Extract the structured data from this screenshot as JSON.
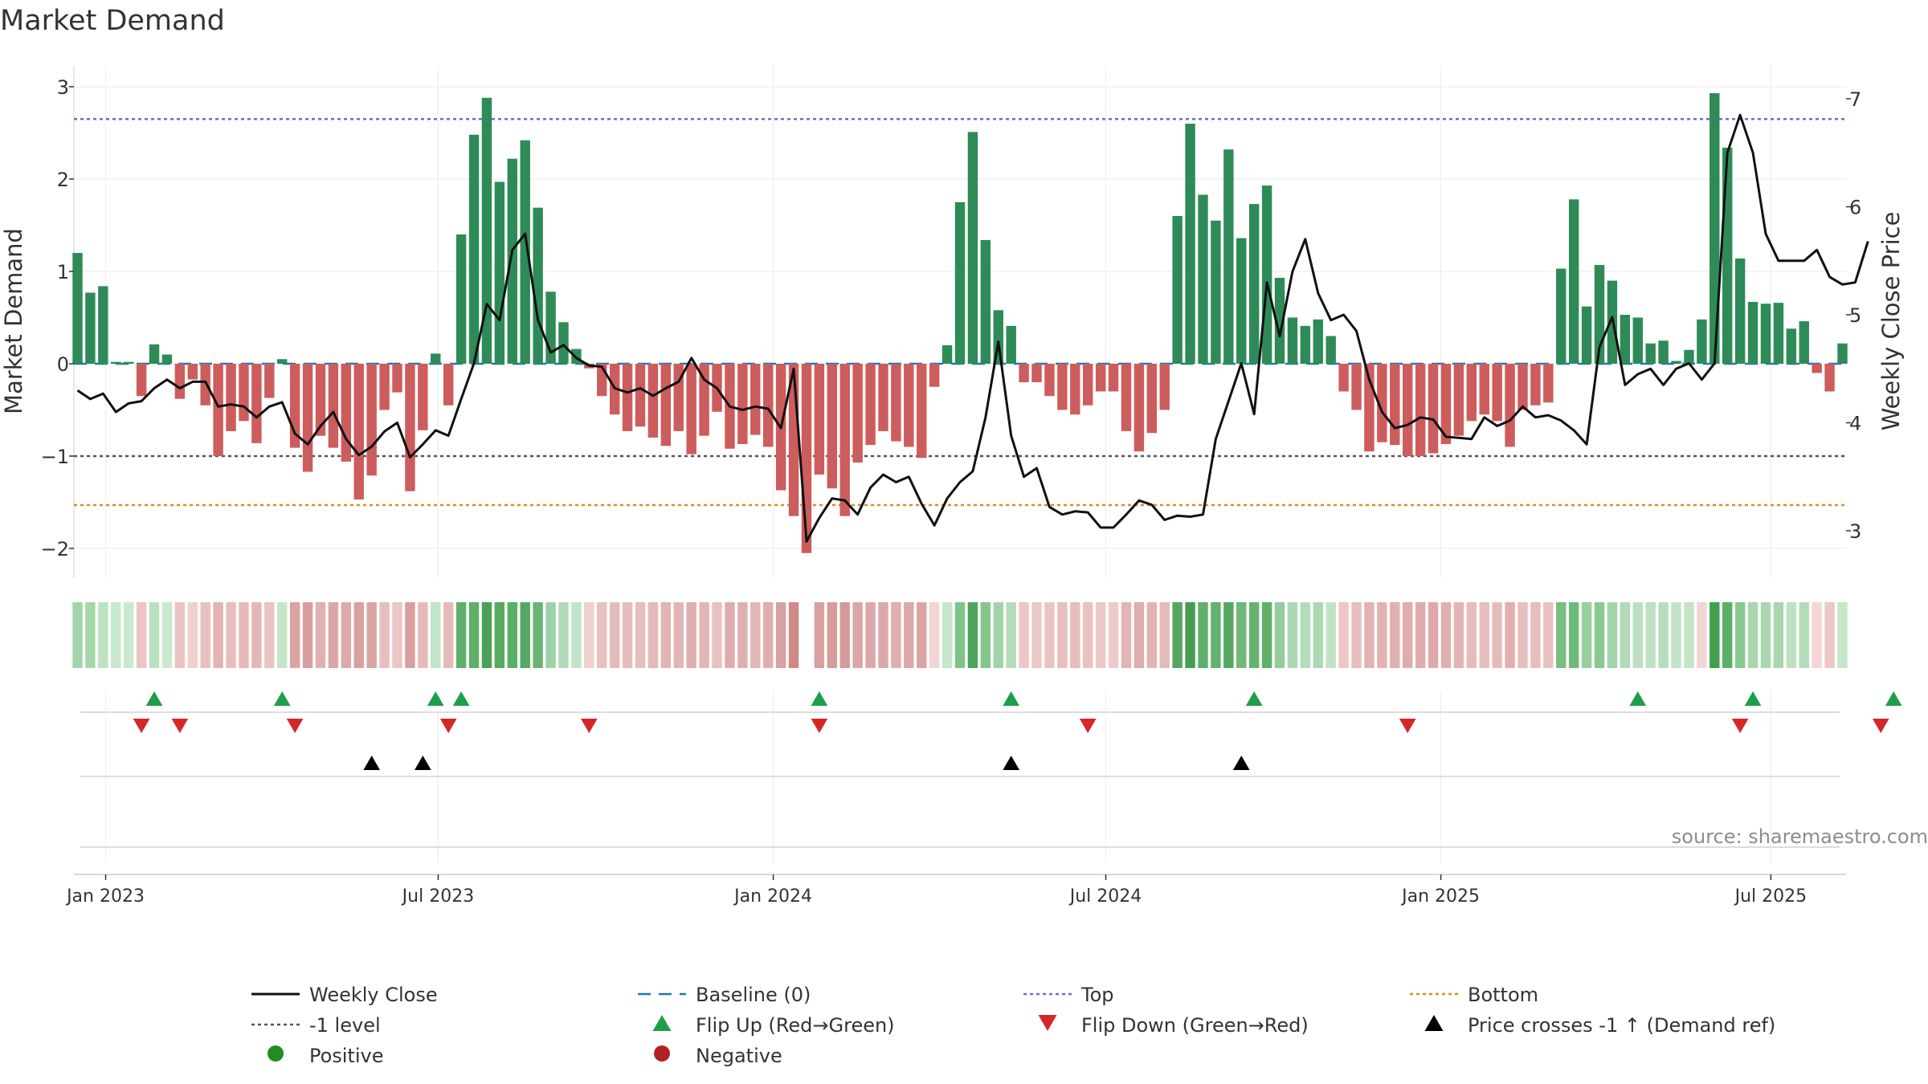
{
  "chart_data": {
    "type": "bar",
    "title": "Market Demand",
    "ylabel": "Market Demand",
    "y2label": "Weekly Close Price",
    "ylim": [
      -2.3,
      3.2
    ],
    "y2lim": [
      2.55,
      7.3
    ],
    "yticks": [
      -2,
      -1,
      0,
      1,
      2,
      3
    ],
    "yticklabels": [
      "−2",
      "−1",
      "0",
      "1",
      "2",
      "3"
    ],
    "y2ticks": [
      3,
      4,
      5,
      6,
      7
    ],
    "y2ticklabels": [
      "3",
      "4",
      "5",
      "6",
      "7"
    ],
    "xlabels": [
      {
        "label": "Jan 2023",
        "week": 0
      },
      {
        "label": "Jul 2023",
        "week": 26
      },
      {
        "label": "Jan 2024",
        "week": 52.2
      },
      {
        "label": "Jul 2024",
        "week": 78.2
      },
      {
        "label": "Jan 2025",
        "week": 104.4
      },
      {
        "label": "Jul 2025",
        "week": 130.2
      }
    ],
    "first_week_offset": -2.2,
    "reference_lines": {
      "top": 2.65,
      "minus_one": -1,
      "bottom": -1.53,
      "baseline": 0
    },
    "demand": [
      1.2,
      0.77,
      0.84,
      0.02,
      0.02,
      -0.35,
      0.21,
      0.1,
      -0.38,
      -0.17,
      -0.45,
      -1.0,
      -0.73,
      -0.62,
      -0.86,
      -0.37,
      0.05,
      -0.91,
      -1.17,
      -0.78,
      -0.91,
      -1.06,
      -1.47,
      -1.21,
      -0.5,
      -0.31,
      -1.38,
      -0.72,
      0.11,
      -0.45,
      1.4,
      2.48,
      2.88,
      1.97,
      2.22,
      2.42,
      1.69,
      0.78,
      0.45,
      0.16,
      -0.05,
      -0.35,
      -0.55,
      -0.73,
      -0.68,
      -0.8,
      -0.89,
      -0.73,
      -0.98,
      -0.78,
      -0.52,
      -0.92,
      -0.87,
      -0.77,
      -0.9,
      -1.37,
      -1.65,
      -2.05,
      -1.2,
      -1.35,
      -1.65,
      -1.07,
      -0.88,
      -0.73,
      -0.84,
      -0.9,
      -1.02,
      -0.25,
      0.2,
      1.75,
      2.51,
      1.34,
      0.58,
      0.41,
      -0.2,
      -0.2,
      -0.35,
      -0.5,
      -0.55,
      -0.45,
      -0.3,
      -0.3,
      -0.73,
      -0.95,
      -0.75,
      -0.5,
      1.6,
      2.6,
      1.83,
      1.55,
      2.32,
      1.36,
      1.73,
      1.93,
      0.93,
      0.5,
      0.41,
      0.48,
      0.3,
      -0.3,
      -0.5,
      -0.95,
      -0.85,
      -0.88,
      -1.0,
      -1.0,
      -0.97,
      -0.87,
      -0.78,
      -0.62,
      -0.55,
      -0.62,
      -0.9,
      -0.5,
      -0.45,
      -0.42,
      1.03,
      1.78,
      0.62,
      1.07,
      0.9,
      0.53,
      0.5,
      0.22,
      0.25,
      0.03,
      0.15,
      0.48,
      2.93,
      2.34,
      1.14,
      0.67,
      0.65,
      0.66,
      0.38,
      0.46,
      -0.1,
      -0.3,
      0.22
    ],
    "close": [
      4.3,
      4.22,
      4.27,
      4.1,
      4.18,
      4.2,
      4.32,
      4.4,
      4.32,
      4.38,
      4.38,
      4.15,
      4.17,
      4.15,
      4.05,
      4.15,
      4.19,
      3.9,
      3.8,
      3.97,
      4.1,
      3.85,
      3.7,
      3.78,
      3.92,
      4.0,
      3.68,
      3.8,
      3.93,
      3.88,
      4.22,
      4.55,
      5.1,
      4.95,
      5.6,
      5.75,
      4.95,
      4.65,
      4.72,
      4.6,
      4.53,
      4.52,
      4.32,
      4.28,
      4.32,
      4.25,
      4.32,
      4.38,
      4.6,
      4.4,
      4.32,
      4.15,
      4.12,
      4.15,
      4.13,
      3.95,
      4.5,
      2.9,
      3.12,
      3.3,
      3.28,
      3.15,
      3.4,
      3.52,
      3.45,
      3.5,
      3.25,
      3.05,
      3.3,
      3.45,
      3.55,
      4.05,
      4.75,
      3.88,
      3.5,
      3.58,
      3.22,
      3.15,
      3.18,
      3.17,
      3.03,
      3.03,
      3.15,
      3.28,
      3.24,
      3.1,
      3.14,
      3.13,
      3.15,
      3.85,
      4.2,
      4.55,
      4.08,
      5.3,
      4.8,
      5.4,
      5.7,
      5.2,
      4.95,
      5.0,
      4.85,
      4.4,
      4.1,
      3.95,
      3.98,
      4.05,
      4.03,
      3.87,
      3.86,
      3.85,
      4.05,
      3.97,
      4.02,
      4.15,
      4.05,
      4.07,
      4.02,
      3.93,
      3.8,
      4.7,
      4.98,
      4.35,
      4.45,
      4.5,
      4.35,
      4.5,
      4.55,
      4.4,
      4.55,
      6.5,
      6.85,
      6.5,
      5.75,
      5.5,
      5.5,
      5.5,
      5.6,
      5.35,
      5.28,
      5.3,
      5.68
    ],
    "colorbar": [
      "#a4d4ad",
      "#a5d6a7",
      "#bbe3c0",
      "#c9e9cd",
      "#cae8ce",
      "#ecc5c4",
      "#b9e1bf",
      "#cce9cf",
      "#ebc3c2",
      "#efd1d0",
      "#e8c1c0",
      "#e3b4b3",
      "#e7bebd",
      "#e5bab9",
      "#e4b7b6",
      "#eac3c2",
      "#c4e6c8",
      "#dba3a2",
      "#d99f9e",
      "#e0b1b0",
      "#dca6a5",
      "#deaaa9",
      "#d8a09f",
      "#dba5a4",
      "#e6bebd",
      "#eac6c5",
      "#d99f9e",
      "#e5bbba",
      "#c2e4c7",
      "#e5bbba",
      "#5fb06a",
      "#5cb067",
      "#4aa056",
      "#58aa63",
      "#5aaf66",
      "#55a962",
      "#6bb474",
      "#9fd1a7",
      "#b1dbb6",
      "#c3e4c7",
      "#efd0cf",
      "#e8c1c0",
      "#e6bcbb",
      "#e6bdbc",
      "#e6bebd",
      "#e4b9b8",
      "#e2b4b3",
      "#e3b6b5",
      "#dfaead",
      "#e3b5b4",
      "#e8c1c0",
      "#dfadac",
      "#dfafae",
      "#e3b6b5",
      "#dfadac",
      "#d8a09f",
      "#cf8987",
      "#ffffff",
      "#d8a09f",
      "#d69c9b",
      "#d59a99",
      "#dca6a5",
      "#dda8a7",
      "#dda9a8",
      "#dfaead",
      "#dda8a7",
      "#dba4a3",
      "#f1d6d5",
      "#c5e6ca",
      "#7fc487",
      "#4fa45b",
      "#84c68c",
      "#a3d3aa",
      "#b5dcba",
      "#ecc7c6",
      "#edc9c8",
      "#eac4c3",
      "#e7bfbe",
      "#e7bebd",
      "#e8c1c0",
      "#ecc8c7",
      "#edcac9",
      "#e2b4b3",
      "#dfadac",
      "#e2b3b2",
      "#e5bab9",
      "#55a661",
      "#479c53",
      "#5fb06a",
      "#64b26e",
      "#55a761",
      "#6fb878",
      "#65b36f",
      "#60b06a",
      "#94cc9b",
      "#acd8b2",
      "#b3dcb8",
      "#acd8b2",
      "#c0e3c5",
      "#ecc7c6",
      "#e7bfbe",
      "#e2b3b2",
      "#e2b3b2",
      "#e0b0af",
      "#deacab",
      "#deacab",
      "#ddaaa9",
      "#e0afae",
      "#e2b4b3",
      "#e6bcbb",
      "#e7bfbe",
      "#e6bcbb",
      "#e0afae",
      "#e7bebd",
      "#e6bdbc",
      "#e8c1c0",
      "#77bf80",
      "#70ba79",
      "#99cea0",
      "#8ac98f",
      "#a4d4ab",
      "#b1dab6",
      "#bce0c1",
      "#bde1c1",
      "#b6ddbb",
      "#c0e3c5",
      "#c3e5c7",
      "#f2d5d4",
      "#40a04c",
      "#5bb066",
      "#8ac98f",
      "#a9d6af",
      "#aad7b0",
      "#a9d6af",
      "#bde1c1",
      "#b3dcb8",
      "#f3d6d5",
      "#ecc7c6",
      "#c6e6ca"
    ],
    "flip_up_weeks": [
      6,
      16,
      28,
      30,
      58,
      73,
      92,
      122,
      131,
      142
    ],
    "flip_down_weeks": [
      5,
      8,
      17,
      29,
      40,
      58,
      79,
      104,
      130,
      141
    ],
    "price_cross_weeks": [
      23,
      27,
      73,
      91
    ],
    "source": "source: sharemaestro.com",
    "legend": [
      {
        "label": "Weekly Close",
        "kind": "line",
        "color": "#111111"
      },
      {
        "label": "Baseline (0)",
        "kind": "dash",
        "color": "#1f77b4"
      },
      {
        "label": "Top",
        "kind": "dot",
        "color": "#6b6bd6"
      },
      {
        "label": "Bottom",
        "kind": "dot",
        "color": "#e08a1e"
      },
      {
        "label": "-1 level",
        "kind": "dot",
        "color": "#555555"
      },
      {
        "label": "Flip Up (Red→Green)",
        "kind": "tri-up",
        "color": "#1e9e4a"
      },
      {
        "label": "Flip Down (Green→Red)",
        "kind": "tri-down",
        "color": "#d62728"
      },
      {
        "label": "Price crosses -1 ↑ (Demand ref)",
        "kind": "tri-up",
        "color": "#000000"
      },
      {
        "label": "Positive",
        "kind": "circle",
        "color": "#228b22"
      },
      {
        "label": "Negative",
        "kind": "circle",
        "color": "#b22222"
      }
    ],
    "colors": {
      "positive": "#2e8b57",
      "negative": "#cd5c5c",
      "close": "#111111",
      "top": "#6b6bd6",
      "bottom": "#e08a1e",
      "minus_one": "#555555",
      "baseline": "#1f77b4"
    }
  }
}
